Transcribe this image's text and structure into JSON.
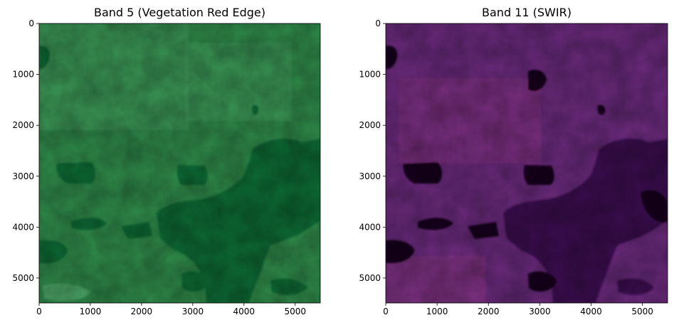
{
  "chart_data": [
    {
      "type": "heatmap",
      "title": "Band 5 (Vegetation Red Edge)",
      "colormap": "Greens",
      "xlim": [
        0,
        5490
      ],
      "ylim": [
        5490,
        0
      ],
      "xticks": [
        "0",
        "1000",
        "2000",
        "3000",
        "4000",
        "5000"
      ],
      "yticks": [
        "0",
        "1000",
        "2000",
        "3000",
        "4000",
        "5000"
      ],
      "xlabel": "",
      "ylabel": ""
    },
    {
      "type": "heatmap",
      "title": "Band 11 (SWIR)",
      "colormap": "magma",
      "xlim": [
        0,
        5490
      ],
      "ylim": [
        5490,
        0
      ],
      "xticks": [
        "0",
        "1000",
        "2000",
        "3000",
        "4000",
        "5000"
      ],
      "yticks": [
        "0",
        "1000",
        "2000",
        "3000",
        "4000",
        "5000"
      ],
      "xlabel": "",
      "ylabel": ""
    }
  ],
  "colors": {
    "greens_base": "#2f8a4a",
    "greens_dark": "#0c6a34",
    "greens_light": "#4fa86a",
    "magma_base": "#6a2a7c",
    "magma_dark": "#3a1150",
    "magma_darkest": "#14061f",
    "magma_light": "#9a3a86"
  }
}
